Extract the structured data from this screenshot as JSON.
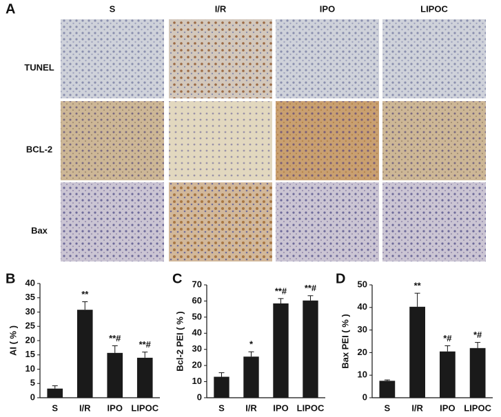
{
  "panel_a": {
    "label": "A",
    "columns": [
      "S",
      "I/R",
      "IPO",
      "LIPOC"
    ],
    "rows": [
      "TUNEL",
      "BCL-2",
      "Bax"
    ]
  },
  "chart_data": [
    {
      "type": "bar",
      "panel_label": "B",
      "ylabel": "AI ( % )",
      "categories": [
        "S",
        "I/R",
        "IPO",
        "LIPOC"
      ],
      "values": [
        3.2,
        30.8,
        15.7,
        14.0
      ],
      "errors": [
        1.0,
        2.8,
        2.5,
        2.0
      ],
      "annotations": [
        null,
        "**",
        "**#",
        "**#"
      ],
      "color": "#1a1a1a",
      "ylim": [
        0,
        40
      ],
      "yticks": [
        0,
        5,
        10,
        15,
        20,
        25,
        30,
        35,
        40
      ]
    },
    {
      "type": "bar",
      "panel_label": "C",
      "ylabel": "Bcl-2 PEI ( % )",
      "categories": [
        "S",
        "I/R",
        "IPO",
        "LIPOC"
      ],
      "values": [
        13,
        25.5,
        58.5,
        60.3
      ],
      "errors": [
        2.5,
        3,
        3,
        3
      ],
      "annotations": [
        null,
        "*",
        "**#",
        "**#"
      ],
      "color": "#1a1a1a",
      "ylim": [
        0,
        70
      ],
      "yticks": [
        0,
        10,
        20,
        30,
        40,
        50,
        60,
        70
      ]
    },
    {
      "type": "bar",
      "panel_label": "D",
      "ylabel": "Bax PEI ( % )",
      "categories": [
        "S",
        "I/R",
        "IPO",
        "LIPOC"
      ],
      "values": [
        7.5,
        40.3,
        20.5,
        22
      ],
      "errors": [
        0.4,
        6,
        2.5,
        2.5
      ],
      "annotations": [
        null,
        "**",
        "*#",
        "*#"
      ],
      "color": "#1a1a1a",
      "ylim": [
        0,
        50
      ],
      "yticks": [
        0,
        10,
        20,
        30,
        40,
        50
      ]
    }
  ]
}
